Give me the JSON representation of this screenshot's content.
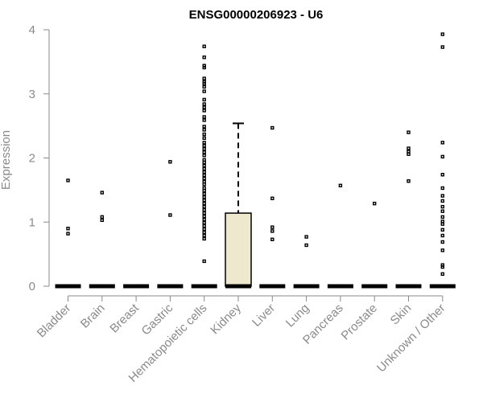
{
  "chart_data": {
    "type": "boxplot",
    "title": "ENSG00000206923 - U6",
    "ylabel": "Expression",
    "xlabel": "",
    "ylim": [
      0,
      4
    ],
    "yticks": [
      0,
      1,
      2,
      3,
      4
    ],
    "box_fill": "#ede8ce",
    "categories": [
      "Bladder",
      "Brain",
      "Breast",
      "Gastric",
      "Hematopoietic cells",
      "Kidney",
      "Liver",
      "Lung",
      "Pancreas",
      "Prostate",
      "Skin",
      "Unknown / Other"
    ],
    "boxes": [
      {
        "category": "Bladder",
        "median": 0,
        "q1": 0,
        "q3": 0,
        "whisker_low": 0,
        "whisker_high": 0,
        "outliers": [
          1.65,
          0.9,
          0.82
        ]
      },
      {
        "category": "Brain",
        "median": 0,
        "q1": 0,
        "q3": 0,
        "whisker_low": 0,
        "whisker_high": 0,
        "outliers": [
          1.46,
          1.08,
          1.03
        ]
      },
      {
        "category": "Breast",
        "median": 0,
        "q1": 0,
        "q3": 0,
        "whisker_low": 0,
        "whisker_high": 0,
        "outliers": []
      },
      {
        "category": "Gastric",
        "median": 0,
        "q1": 0,
        "q3": 0,
        "whisker_low": 0,
        "whisker_high": 0,
        "outliers": [
          1.94,
          1.11
        ]
      },
      {
        "category": "Hematopoietic cells",
        "median": 0,
        "q1": 0,
        "q3": 0,
        "whisker_low": 0,
        "whisker_high": 0,
        "outliers": [
          3.74,
          3.57,
          3.44,
          3.41,
          3.24,
          3.19,
          3.16,
          3.11,
          3.04,
          2.91,
          2.84,
          2.79,
          2.74,
          2.64,
          2.59,
          2.49,
          2.44,
          2.37,
          2.31,
          2.24,
          2.19,
          2.14,
          2.09,
          2.04,
          1.97,
          1.93,
          1.88,
          1.83,
          1.78,
          1.73,
          1.68,
          1.63,
          1.59,
          1.53,
          1.49,
          1.44,
          1.39,
          1.34,
          1.29,
          1.24,
          1.19,
          1.14,
          1.09,
          1.04,
          0.99,
          0.94,
          0.89,
          0.84,
          0.79,
          0.74,
          0.39
        ]
      },
      {
        "category": "Kidney",
        "median": 0,
        "q1": 0,
        "q3": 1.14,
        "whisker_low": 0,
        "whisker_high": 2.54,
        "outliers": []
      },
      {
        "category": "Liver",
        "median": 0,
        "q1": 0,
        "q3": 0,
        "whisker_low": 0,
        "whisker_high": 0,
        "outliers": [
          2.47,
          1.37,
          0.92,
          0.86,
          0.73
        ]
      },
      {
        "category": "Lung",
        "median": 0,
        "q1": 0,
        "q3": 0,
        "whisker_low": 0,
        "whisker_high": 0,
        "outliers": [
          0.77,
          0.64
        ]
      },
      {
        "category": "Pancreas",
        "median": 0,
        "q1": 0,
        "q3": 0,
        "whisker_low": 0,
        "whisker_high": 0,
        "outliers": [
          1.57
        ]
      },
      {
        "category": "Prostate",
        "median": 0,
        "q1": 0,
        "q3": 0,
        "whisker_low": 0,
        "whisker_high": 0,
        "outliers": [
          1.29
        ]
      },
      {
        "category": "Skin",
        "median": 0,
        "q1": 0,
        "q3": 0,
        "whisker_low": 0,
        "whisker_high": 0,
        "outliers": [
          2.4,
          2.15,
          2.1,
          2.06,
          1.64
        ]
      },
      {
        "category": "Unknown / Other",
        "median": 0,
        "q1": 0,
        "q3": 0,
        "whisker_low": 0,
        "whisker_high": 0,
        "outliers": [
          3.93,
          3.73,
          2.24,
          2.02,
          1.74,
          1.53,
          1.41,
          1.33,
          1.24,
          1.17,
          1.08,
          1.01,
          0.97,
          0.88,
          0.79,
          0.69,
          0.56,
          0.33,
          0.3,
          0.19
        ]
      }
    ]
  }
}
